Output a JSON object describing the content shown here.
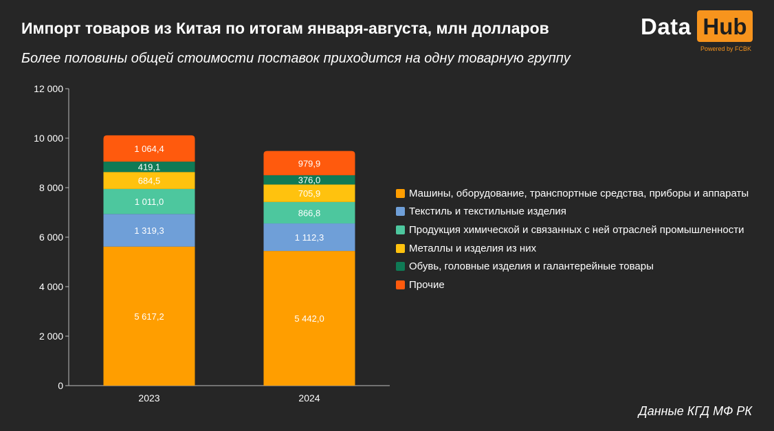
{
  "title": "Импорт товаров из Китая по итогам января-августа, млн долларов",
  "subtitle": "Более половины общей стоимости поставок приходится на одну товарную группу",
  "logo": {
    "word1": "Data",
    "word2": "Hub",
    "tagline": "Powered by FCBK"
  },
  "source": "Данные КГД МФ РК",
  "colors": {
    "background": "#262626",
    "axis": "#bfbfbf",
    "brand": "#f7941d"
  },
  "chart_data": {
    "type": "bar",
    "stacked": true,
    "categories": [
      "2023",
      "2024"
    ],
    "series": [
      {
        "name": "Машины, оборудование, транспортные средства, приборы и аппараты",
        "color": "#ff9e00",
        "values": [
          5617.2,
          5442.0
        ],
        "labels": [
          "5 617,2",
          "5 442,0"
        ]
      },
      {
        "name": "Текстиль и текстильные изделия",
        "color": "#6f9fd8",
        "values": [
          1319.3,
          1112.3
        ],
        "labels": [
          "1 319,3",
          "1 112,3"
        ]
      },
      {
        "name": "Продукция химической и связанных с ней отраслей промышленности",
        "color": "#4dc79e",
        "values": [
          1011.0,
          866.8
        ],
        "labels": [
          "1 011,0",
          "866,8"
        ]
      },
      {
        "name": "Металлы и изделия из них",
        "color": "#ffc20e",
        "values": [
          684.5,
          705.9
        ],
        "labels": [
          "684,5",
          "705,9"
        ]
      },
      {
        "name": "Обувь, головные изделия и галантерейные товары",
        "color": "#0f7a55",
        "values": [
          419.1,
          376.0
        ],
        "labels": [
          "419,1",
          "376,0"
        ]
      },
      {
        "name": "Прочие",
        "color": "#ff5a0d",
        "values": [
          1064.4,
          979.9
        ],
        "labels": [
          "1 064,4",
          "979,9"
        ]
      }
    ],
    "ylim": [
      0,
      12000
    ],
    "yticks": [
      0,
      2000,
      4000,
      6000,
      8000,
      10000,
      12000
    ],
    "ytick_labels": [
      "0",
      "2 000",
      "4 000",
      "6 000",
      "8 000",
      "10 000",
      "12 000"
    ],
    "grid": false,
    "legend": "right"
  }
}
